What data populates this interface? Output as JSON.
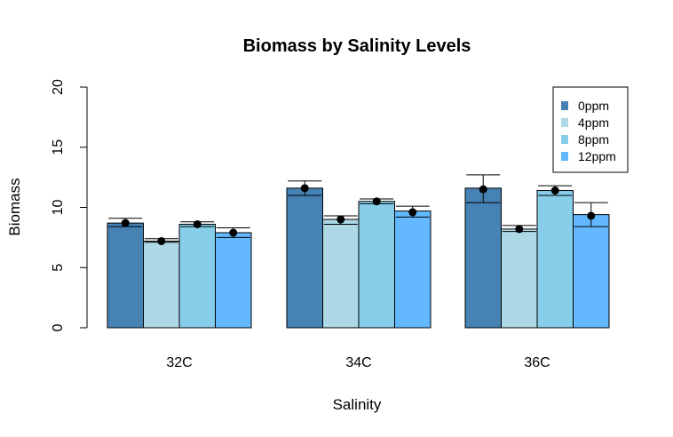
{
  "chart_data": {
    "type": "bar",
    "title": "Biomass by Salinity Levels",
    "xlabel": "Salinity",
    "ylabel": "Biomass",
    "ylim": [
      0,
      20
    ],
    "yticks": [
      "0",
      "5",
      "10",
      "15",
      "20"
    ],
    "categories": [
      "32C",
      "34C",
      "36C"
    ],
    "series": [
      {
        "name": "0ppm",
        "color": "#4682B4",
        "values": [
          8.7,
          11.6,
          11.6
        ],
        "means": [
          8.7,
          11.6,
          11.5
        ],
        "err_low": [
          8.4,
          11.0,
          10.4
        ],
        "err_high": [
          9.1,
          12.2,
          12.7
        ]
      },
      {
        "name": "4ppm",
        "color": "#ADD8E6",
        "values": [
          7.2,
          9.0,
          8.2
        ],
        "means": [
          7.2,
          9.0,
          8.2
        ],
        "err_low": [
          7.1,
          8.6,
          8.0
        ],
        "err_high": [
          7.4,
          9.3,
          8.5
        ]
      },
      {
        "name": "8ppm",
        "color": "#87CEEB",
        "values": [
          8.6,
          10.5,
          11.4
        ],
        "means": [
          8.6,
          10.5,
          11.4
        ],
        "err_low": [
          8.4,
          10.3,
          11.0
        ],
        "err_high": [
          8.8,
          10.7,
          11.8
        ]
      },
      {
        "name": "12ppm",
        "color": "#63B8FF",
        "values": [
          7.9,
          9.7,
          9.4
        ],
        "means": [
          7.9,
          9.6,
          9.3
        ],
        "err_low": [
          7.5,
          9.2,
          8.4
        ],
        "err_high": [
          8.3,
          10.1,
          10.4
        ]
      }
    ],
    "legend_position": "top-right"
  }
}
